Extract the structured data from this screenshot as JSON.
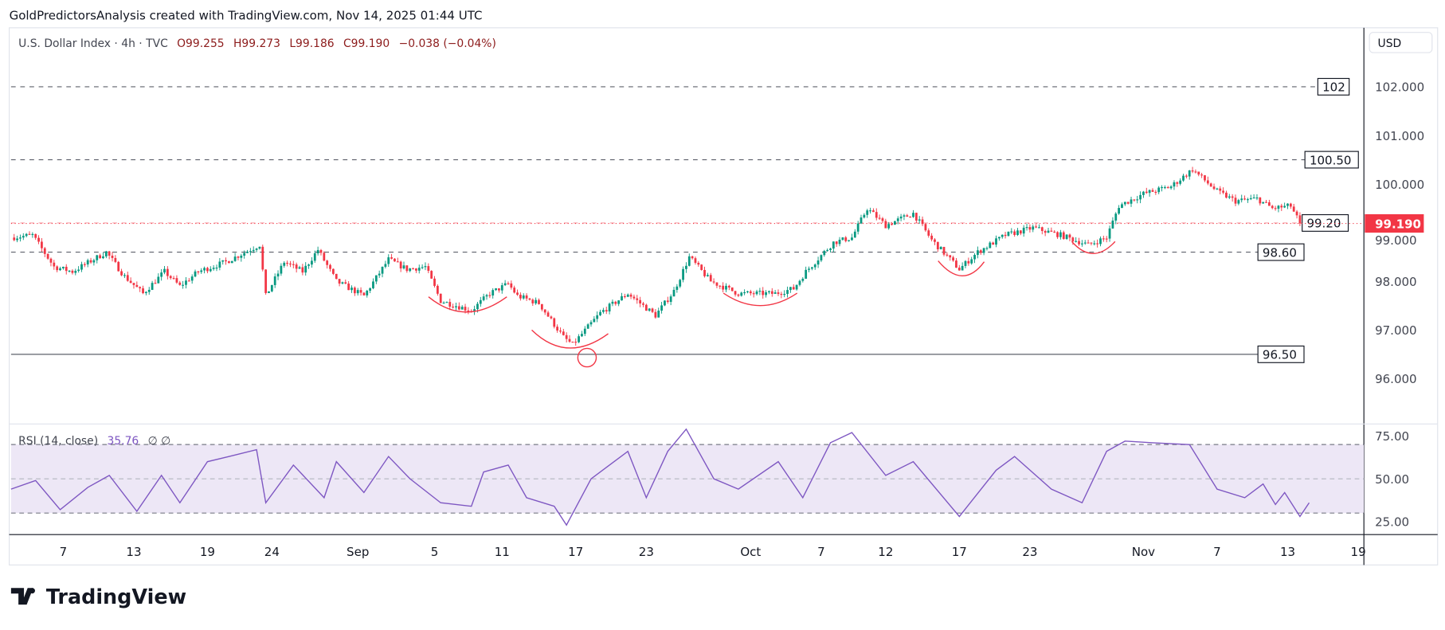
{
  "header": {
    "attribution": "GoldPredictorsAnalysis created with TradingView.com, Nov 14, 2025 01:44 UTC"
  },
  "legend": {
    "symbol": "U.S. Dollar Index · 4h · TVC",
    "open": "O99.255",
    "high": "H99.273",
    "low": "L99.186",
    "close": "C99.190",
    "change": "−0.038 (−0.04%)"
  },
  "currency_button": "USD",
  "rsi_legend": {
    "name": "RSI (14, close)",
    "value": "35.76",
    "extra": "∅  ∅"
  },
  "branding": {
    "logo_text": "TradingView"
  },
  "colors": {
    "up": "#089981",
    "down": "#f23645",
    "rsi": "#7e57c2",
    "rsi_band": "#ede7f6",
    "annotation": "#f23645"
  },
  "chart_data": [
    {
      "type": "candlestick",
      "title": "U.S. Dollar Index · 4h · TVC",
      "ylim": [
        95.3,
        103.2
      ],
      "price_ticks": [
        "102.000",
        "101.000",
        "100.000",
        "99.000",
        "98.000",
        "97.000",
        "96.000"
      ],
      "price_tick_values": [
        102,
        101,
        100,
        99,
        98,
        97,
        96
      ],
      "current_price": {
        "label": "99.190",
        "value": 99.19
      },
      "x_ticks": [
        {
          "label": "7",
          "bar": 17
        },
        {
          "label": "13",
          "bar": 40
        },
        {
          "label": "19",
          "bar": 64
        },
        {
          "label": "24",
          "bar": 85
        },
        {
          "label": "Sep",
          "bar": 113
        },
        {
          "label": "5",
          "bar": 138
        },
        {
          "label": "11",
          "bar": 160
        },
        {
          "label": "17",
          "bar": 184
        },
        {
          "label": "23",
          "bar": 207
        },
        {
          "label": "Oct",
          "bar": 241
        },
        {
          "label": "7",
          "bar": 264
        },
        {
          "label": "12",
          "bar": 285
        },
        {
          "label": "17",
          "bar": 309
        },
        {
          "label": "23",
          "bar": 332
        },
        {
          "label": "Nov",
          "bar": 369
        },
        {
          "label": "7",
          "bar": 393
        },
        {
          "label": "13",
          "bar": 416
        },
        {
          "label": "19",
          "bar": 439
        }
      ],
      "close_path": [
        [
          0,
          98.9
        ],
        [
          7,
          98.95
        ],
        [
          14,
          98.3
        ],
        [
          20,
          98.2
        ],
        [
          31,
          98.6
        ],
        [
          37,
          98.1
        ],
        [
          43,
          97.75
        ],
        [
          50,
          98.2
        ],
        [
          55,
          97.9
        ],
        [
          61,
          98.2
        ],
        [
          70,
          98.4
        ],
        [
          81,
          98.75
        ],
        [
          83,
          97.7
        ],
        [
          89,
          98.4
        ],
        [
          95,
          98.2
        ],
        [
          100,
          98.65
        ],
        [
          106,
          98.0
        ],
        [
          115,
          97.7
        ],
        [
          123,
          98.45
        ],
        [
          129,
          98.25
        ],
        [
          135,
          98.3
        ],
        [
          140,
          97.6
        ],
        [
          150,
          97.4
        ],
        [
          156,
          97.75
        ],
        [
          162,
          97.95
        ],
        [
          165,
          97.7
        ],
        [
          172,
          97.55
        ],
        [
          180,
          96.85
        ],
        [
          183,
          96.7
        ],
        [
          192,
          97.35
        ],
        [
          201,
          97.75
        ],
        [
          210,
          97.3
        ],
        [
          216,
          97.8
        ],
        [
          221,
          98.5
        ],
        [
          228,
          98.0
        ],
        [
          237,
          97.75
        ],
        [
          249,
          97.75
        ],
        [
          255,
          97.85
        ],
        [
          259,
          98.2
        ],
        [
          268,
          98.8
        ],
        [
          274,
          98.9
        ],
        [
          279,
          99.5
        ],
        [
          285,
          99.15
        ],
        [
          294,
          99.4
        ],
        [
          300,
          98.85
        ],
        [
          309,
          98.25
        ],
        [
          315,
          98.6
        ],
        [
          324,
          98.95
        ],
        [
          333,
          99.1
        ],
        [
          342,
          98.95
        ],
        [
          351,
          98.75
        ],
        [
          357,
          98.9
        ],
        [
          361,
          99.55
        ],
        [
          369,
          99.8
        ],
        [
          378,
          99.95
        ],
        [
          385,
          100.3
        ],
        [
          393,
          99.85
        ],
        [
          399,
          99.65
        ],
        [
          406,
          99.7
        ],
        [
          411,
          99.5
        ],
        [
          417,
          99.55
        ],
        [
          420,
          99.19
        ]
      ],
      "levels": [
        {
          "label": "102",
          "value": 102,
          "style": "dashed"
        },
        {
          "label": "100.50",
          "value": 100.5,
          "style": "dashed"
        },
        {
          "label": "99.20",
          "value": 99.2,
          "style": "dashed-red"
        },
        {
          "label": "98.60",
          "value": 98.6,
          "style": "dashed"
        },
        {
          "label": "96.50",
          "value": 96.5,
          "style": "solid"
        }
      ]
    },
    {
      "type": "line",
      "title": "RSI (14, close)",
      "ylim": [
        20,
        80
      ],
      "y_ticks": [
        "75.00",
        "50.00",
        "25.00"
      ],
      "y_tick_values": [
        75,
        50,
        25
      ],
      "band": [
        30,
        70
      ],
      "series": [
        [
          0,
          44
        ],
        [
          8,
          49
        ],
        [
          16,
          32
        ],
        [
          25,
          45
        ],
        [
          32,
          52
        ],
        [
          41,
          31
        ],
        [
          49,
          52
        ],
        [
          55,
          36
        ],
        [
          64,
          60
        ],
        [
          71,
          63
        ],
        [
          80,
          67
        ],
        [
          83,
          36
        ],
        [
          92,
          58
        ],
        [
          102,
          39
        ],
        [
          106,
          60
        ],
        [
          115,
          42
        ],
        [
          123,
          63
        ],
        [
          130,
          50
        ],
        [
          140,
          36
        ],
        [
          150,
          34
        ],
        [
          154,
          54
        ],
        [
          162,
          58
        ],
        [
          168,
          39
        ],
        [
          177,
          34
        ],
        [
          181,
          23
        ],
        [
          189,
          50
        ],
        [
          201,
          66
        ],
        [
          207,
          39
        ],
        [
          214,
          66
        ],
        [
          220,
          79
        ],
        [
          229,
          50
        ],
        [
          237,
          44
        ],
        [
          250,
          60
        ],
        [
          258,
          39
        ],
        [
          267,
          71
        ],
        [
          274,
          77
        ],
        [
          285,
          52
        ],
        [
          294,
          60
        ],
        [
          309,
          28
        ],
        [
          321,
          55
        ],
        [
          327,
          63
        ],
        [
          339,
          44
        ],
        [
          349,
          36
        ],
        [
          357,
          66
        ],
        [
          363,
          72
        ],
        [
          372,
          71
        ],
        [
          384,
          70
        ],
        [
          393,
          44
        ],
        [
          402,
          39
        ],
        [
          408,
          47
        ],
        [
          412,
          35
        ],
        [
          415,
          42
        ],
        [
          420,
          28
        ],
        [
          423,
          36
        ]
      ]
    }
  ]
}
